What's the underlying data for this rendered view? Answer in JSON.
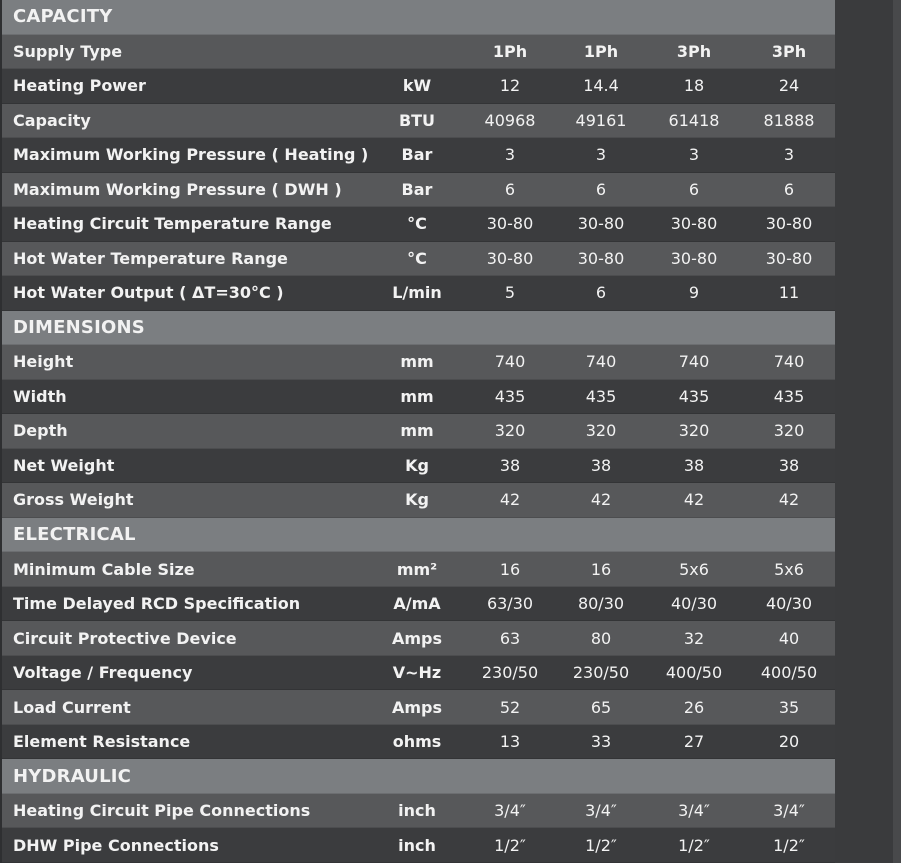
{
  "sections": [
    {
      "title": "CAPACITY",
      "rows": [
        {
          "label": "Supply Type",
          "unit": "",
          "values": [
            "1Ph",
            "1Ph",
            "3Ph",
            "3Ph"
          ],
          "header": true
        },
        {
          "label": "Heating Power",
          "unit": "kW",
          "values": [
            "12",
            "14.4",
            "18",
            "24"
          ]
        },
        {
          "label": "Capacity",
          "unit": "BTU",
          "values": [
            "40968",
            "49161",
            "61418",
            "81888"
          ]
        },
        {
          "label": "Maximum Working Pressure ( Heating )",
          "unit": "Bar",
          "values": [
            "3",
            "3",
            "3",
            "3"
          ]
        },
        {
          "label": "Maximum Working Pressure ( DWH )",
          "unit": "Bar",
          "values": [
            "6",
            "6",
            "6",
            "6"
          ]
        },
        {
          "label": "Heating Circuit Temperature Range",
          "unit": "°C",
          "values": [
            "30-80",
            "30-80",
            "30-80",
            "30-80"
          ]
        },
        {
          "label": "Hot Water Temperature Range",
          "unit": "°C",
          "values": [
            "30-80",
            "30-80",
            "30-80",
            "30-80"
          ]
        },
        {
          "label": "Hot Water Output ( ΔT=30°C )",
          "unit": "L/min",
          "values": [
            "5",
            "6",
            "9",
            "11"
          ]
        }
      ]
    },
    {
      "title": "DIMENSIONS",
      "rows": [
        {
          "label": "Height",
          "unit": "mm",
          "values": [
            "740",
            "740",
            "740",
            "740"
          ]
        },
        {
          "label": "Width",
          "unit": "mm",
          "values": [
            "435",
            "435",
            "435",
            "435"
          ]
        },
        {
          "label": "Depth",
          "unit": "mm",
          "values": [
            "320",
            "320",
            "320",
            "320"
          ]
        },
        {
          "label": "Net Weight",
          "unit": "Kg",
          "values": [
            "38",
            "38",
            "38",
            "38"
          ]
        },
        {
          "label": "Gross Weight",
          "unit": "Kg",
          "values": [
            "42",
            "42",
            "42",
            "42"
          ]
        }
      ]
    },
    {
      "title": "ELECTRICAL",
      "rows": [
        {
          "label": "Minimum Cable Size",
          "unit": "mm²",
          "values": [
            "16",
            "16",
            "5x6",
            "5x6"
          ]
        },
        {
          "label": "Time Delayed RCD Specification",
          "unit": "A/mA",
          "values": [
            "63/30",
            "80/30",
            "40/30",
            "40/30"
          ]
        },
        {
          "label": "Circuit Protective Device",
          "unit": "Amps",
          "values": [
            "63",
            "80",
            "32",
            "40"
          ]
        },
        {
          "label": "Voltage / Frequency",
          "unit": "V~Hz",
          "values": [
            "230/50",
            "230/50",
            "400/50",
            "400/50"
          ]
        },
        {
          "label": "Load Current",
          "unit": "Amps",
          "values": [
            "52",
            "65",
            "26",
            "35"
          ]
        },
        {
          "label": "Element Resistance",
          "unit": "ohms",
          "values": [
            "13",
            "33",
            "27",
            "20"
          ]
        }
      ]
    },
    {
      "title": "HYDRAULIC",
      "rows": [
        {
          "label": "Heating Circuit Pipe Connections",
          "unit": "inch",
          "values": [
            "3/4″",
            "3/4″",
            "3/4″",
            "3/4″"
          ]
        },
        {
          "label": "DHW Pipe Connections",
          "unit": "inch",
          "values": [
            "1/2″",
            "1/2″",
            "1/2″",
            "1/2″"
          ]
        }
      ]
    }
  ]
}
